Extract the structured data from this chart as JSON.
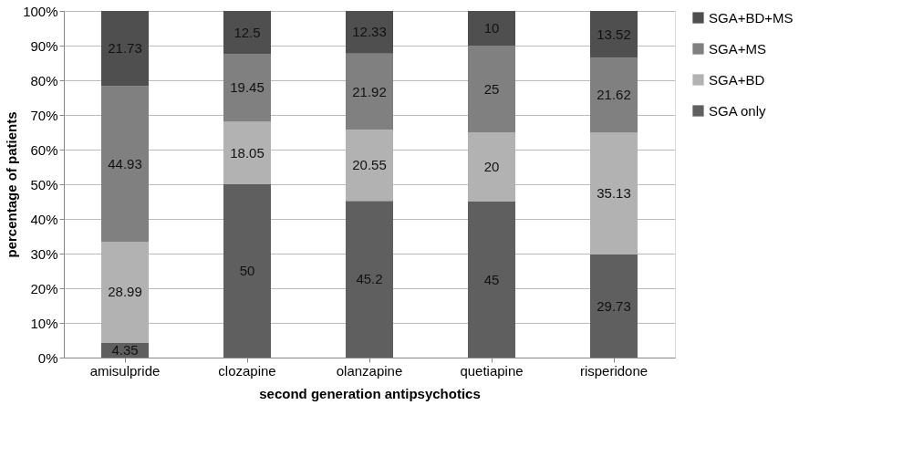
{
  "chart_data": {
    "type": "bar",
    "stacked": true,
    "xlabel": "second generation antipsychotics",
    "ylabel": "percentage of patients",
    "categories": [
      "amisulpride",
      "clozapine",
      "olanzapine",
      "quetiapine",
      "risperidone"
    ],
    "series": [
      {
        "name": "SGA only",
        "color": "#5f5f5f",
        "values": [
          4.35,
          50,
          45.2,
          45,
          29.73
        ]
      },
      {
        "name": "SGA+BD",
        "color": "#b2b2b2",
        "values": [
          28.99,
          18.05,
          20.55,
          20,
          35.13
        ]
      },
      {
        "name": "SGA+MS",
        "color": "#808080",
        "values": [
          44.93,
          19.45,
          21.92,
          25,
          21.62
        ]
      },
      {
        "name": "SGA+BD+MS",
        "color": "#4f4f4f",
        "values": [
          21.73,
          12.5,
          12.33,
          10,
          13.52
        ]
      }
    ],
    "ylim": [
      0,
      100
    ],
    "yticks": [
      {
        "value": 0,
        "label": "0%"
      },
      {
        "value": 10,
        "label": "10%"
      },
      {
        "value": 20,
        "label": "20%"
      },
      {
        "value": 30,
        "label": "30%"
      },
      {
        "value": 40,
        "label": "40%"
      },
      {
        "value": 50,
        "label": "50%"
      },
      {
        "value": 60,
        "label": "60%"
      },
      {
        "value": 70,
        "label": "70%"
      },
      {
        "value": 80,
        "label": "80%"
      },
      {
        "value": 90,
        "label": "90%"
      },
      {
        "value": 100,
        "label": "100%"
      }
    ],
    "grid": "y",
    "legend": "right",
    "data_labels": true
  }
}
